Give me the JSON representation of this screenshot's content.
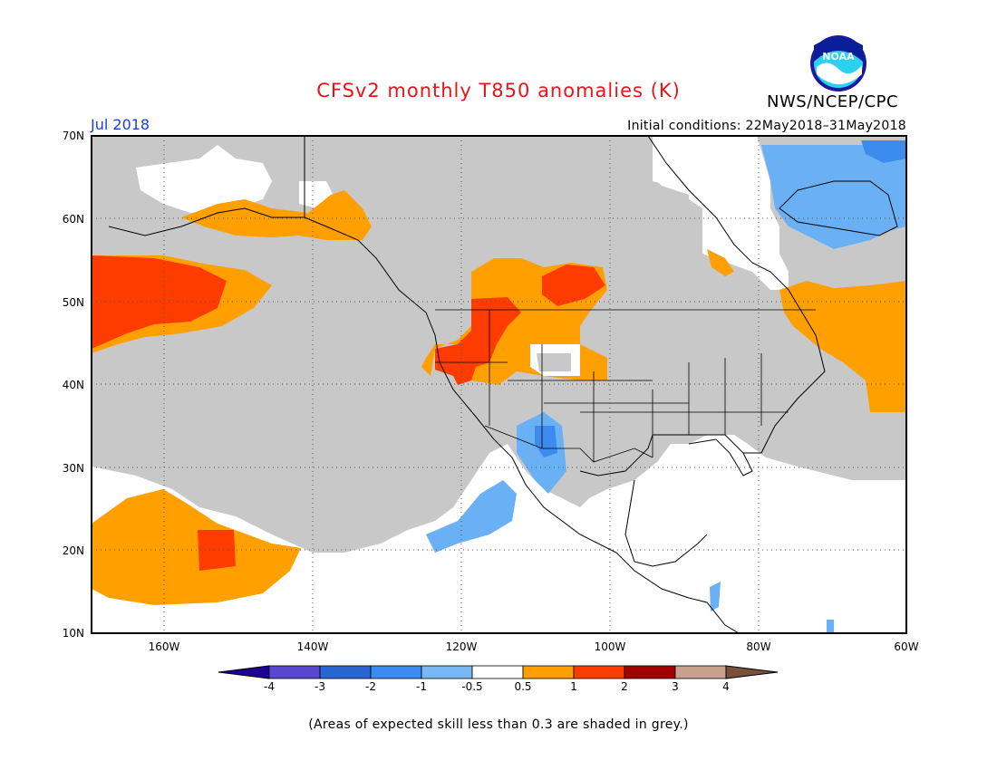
{
  "header": {
    "title": "CFSv2 monthly T850 anomalies (K)",
    "organization": "NWS/NCEP/CPC",
    "logo_text": "NOAA",
    "month": "Jul 2018",
    "initial_conditions": "Initial conditions: 22May2018–31May2018"
  },
  "map": {
    "lat_labels": [
      "70N",
      "60N",
      "50N",
      "40N",
      "30N",
      "20N",
      "10N"
    ],
    "lon_labels": [
      "160W",
      "140W",
      "120W",
      "100W",
      "80W",
      "60W"
    ],
    "lat_range": [
      10,
      70
    ],
    "lon_range": [
      -171,
      -60
    ],
    "grid": true,
    "skill_mask_color": "#c8c8c8",
    "colors": {
      "grey": "#c8c8c8",
      "orange": "#ffa000",
      "red": "#ff3c00",
      "light_blue": "#6ab0f5",
      "blue": "#3c8cf0"
    }
  },
  "legend": {
    "ticks": [
      "-4",
      "-3",
      "-2",
      "-1",
      "-0.5",
      "0.5",
      "1",
      "2",
      "3",
      "4"
    ],
    "colors": [
      "#1e0096",
      "#5a46d2",
      "#2864d2",
      "#3c8cf0",
      "#7ab8f5",
      "#ffffff",
      "#ffa000",
      "#ff3c00",
      "#a00000",
      "#c8a08c",
      "#78503c"
    ]
  },
  "footnote": "(Areas of expected skill less than 0.3 are shaded in grey.)"
}
